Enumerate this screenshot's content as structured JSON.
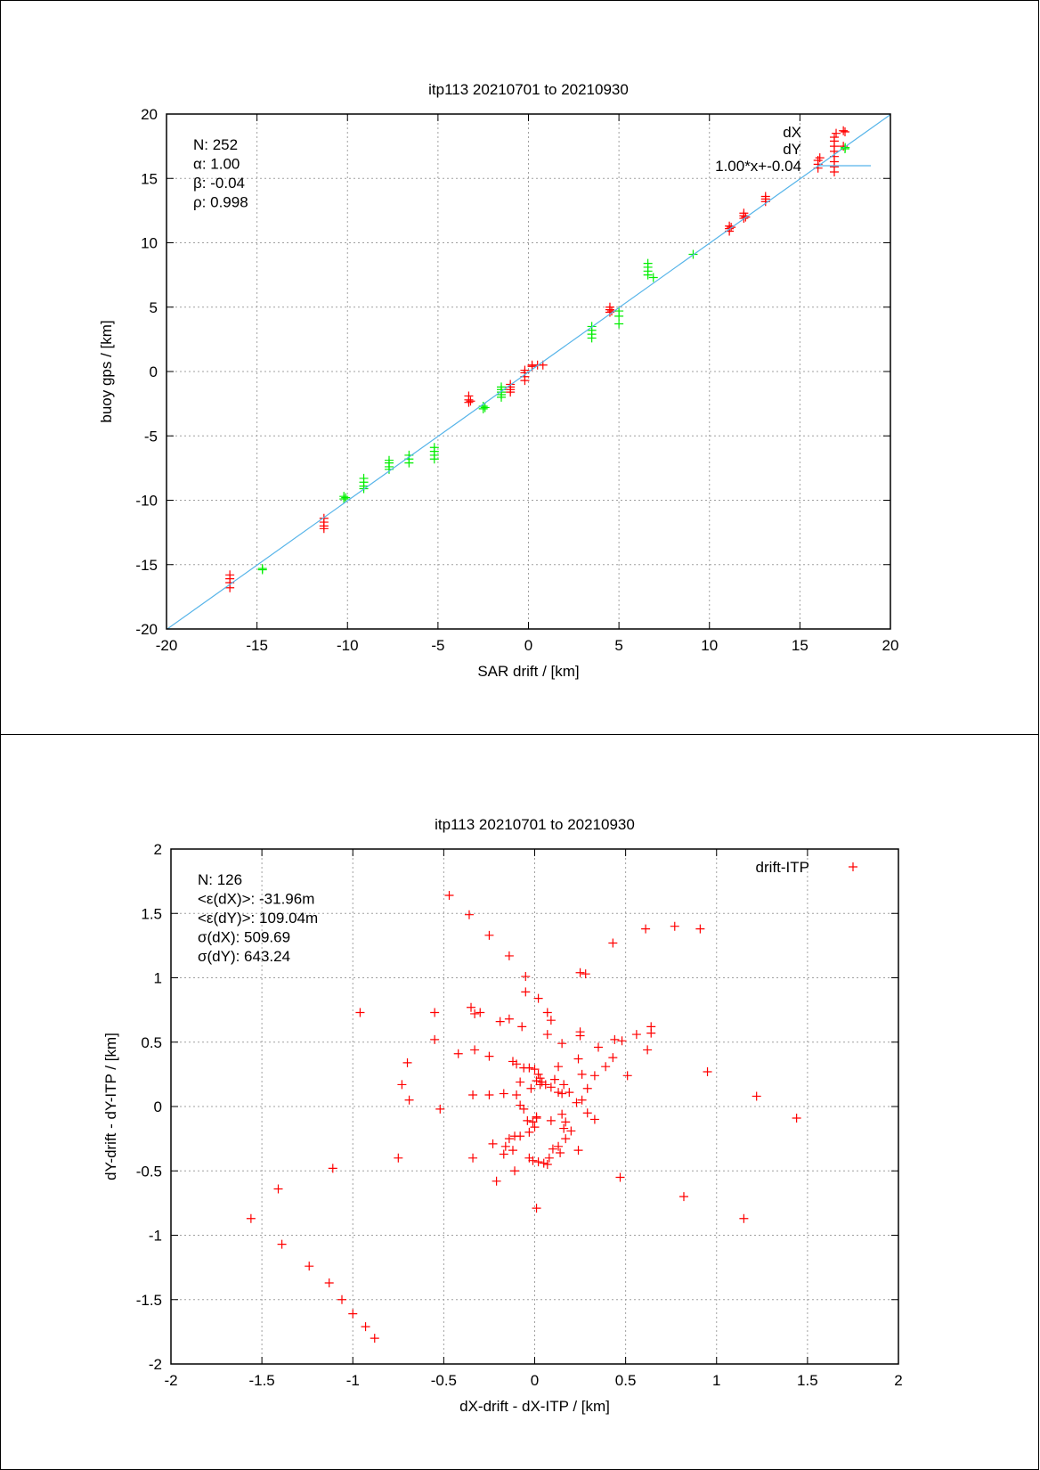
{
  "chart_data": [
    {
      "type": "scatter",
      "title": "itp113 20210701 to 20210930",
      "xlabel": "SAR drift / [km]",
      "ylabel": "buoy gps / [km]",
      "xlim": [
        -20,
        20
      ],
      "ylim": [
        -20,
        20
      ],
      "xticks": [
        "-20",
        "-15",
        "-10",
        "-5",
        "0",
        "5",
        "10",
        "15",
        "20"
      ],
      "yticks": [
        "-20",
        "-15",
        "-10",
        "-5",
        "0",
        "5",
        "10",
        "15",
        "20"
      ],
      "grid": true,
      "legend_position": "top-right",
      "stats": [
        "N: 252",
        "α: 1.00",
        "β: -0.04",
        "ρ: 0.998"
      ],
      "series": [
        {
          "name": "dX",
          "color": "#ff0000",
          "marker": "plus",
          "points": [
            [
              -16.5,
              -15.8
            ],
            [
              -16.5,
              -16.1
            ],
            [
              -16.5,
              -16.4
            ],
            [
              -16.5,
              -16.8
            ],
            [
              -11.3,
              -11.4
            ],
            [
              -11.3,
              -11.7
            ],
            [
              -11.3,
              -12.0
            ],
            [
              -11.3,
              -12.2
            ],
            [
              -3.3,
              -1.9
            ],
            [
              -3.3,
              -2.2
            ],
            [
              -3.3,
              -2.4
            ],
            [
              -3.2,
              -2.3
            ],
            [
              -1.0,
              -1.0
            ],
            [
              -1.0,
              -1.2
            ],
            [
              -1.0,
              -1.4
            ],
            [
              -1.0,
              -1.6
            ],
            [
              -0.2,
              -0.1
            ],
            [
              -0.2,
              -0.4
            ],
            [
              -0.2,
              -0.7
            ],
            [
              -0.2,
              0.1
            ],
            [
              0.2,
              0.4
            ],
            [
              0.2,
              0.5
            ],
            [
              0.5,
              0.5
            ],
            [
              0.8,
              0.5
            ],
            [
              4.5,
              4.6
            ],
            [
              4.5,
              4.8
            ],
            [
              4.5,
              5.0
            ],
            [
              4.6,
              4.7
            ],
            [
              11.1,
              10.9
            ],
            [
              11.1,
              11.1
            ],
            [
              11.1,
              11.3
            ],
            [
              11.2,
              11.2
            ],
            [
              11.9,
              11.9
            ],
            [
              11.9,
              12.1
            ],
            [
              11.9,
              12.3
            ],
            [
              12.0,
              12.0
            ],
            [
              13.1,
              13.2
            ],
            [
              13.1,
              13.4
            ],
            [
              13.1,
              13.6
            ],
            [
              16.0,
              15.8
            ],
            [
              16.0,
              16.1
            ],
            [
              16.0,
              16.4
            ],
            [
              16.1,
              16.6
            ],
            [
              16.9,
              15.5
            ],
            [
              16.9,
              15.9
            ],
            [
              16.9,
              16.3
            ],
            [
              16.9,
              16.7
            ],
            [
              16.9,
              17.1
            ],
            [
              16.9,
              17.5
            ],
            [
              16.9,
              17.9
            ],
            [
              16.9,
              18.2
            ],
            [
              17.0,
              18.5
            ],
            [
              17.4,
              18.7
            ],
            [
              17.4,
              17.5
            ]
          ]
        },
        {
          "name": "dY",
          "color": "#00ee00",
          "marker": "plus",
          "points": [
            [
              -14.7,
              -15.3
            ],
            [
              -14.7,
              -15.4
            ],
            [
              -10.2,
              -9.7
            ],
            [
              -10.2,
              -9.9
            ],
            [
              -10.1,
              -9.8
            ],
            [
              -9.1,
              -8.3
            ],
            [
              -9.1,
              -8.6
            ],
            [
              -9.1,
              -8.9
            ],
            [
              -9.1,
              -9.1
            ],
            [
              -7.7,
              -6.9
            ],
            [
              -7.7,
              -7.1
            ],
            [
              -7.7,
              -7.4
            ],
            [
              -7.7,
              -7.6
            ],
            [
              -6.6,
              -6.5
            ],
            [
              -6.6,
              -6.8
            ],
            [
              -6.6,
              -7.1
            ],
            [
              -5.2,
              -5.9
            ],
            [
              -5.2,
              -6.2
            ],
            [
              -5.2,
              -6.5
            ],
            [
              -5.2,
              -6.8
            ],
            [
              -2.5,
              -2.7
            ],
            [
              -2.5,
              -2.9
            ],
            [
              -2.4,
              -2.8
            ],
            [
              -1.5,
              -1.2
            ],
            [
              -1.5,
              -1.4
            ],
            [
              -1.5,
              -1.6
            ],
            [
              -1.5,
              -1.8
            ],
            [
              -1.5,
              -2.0
            ],
            [
              3.5,
              3.5
            ],
            [
              3.5,
              3.2
            ],
            [
              3.5,
              2.9
            ],
            [
              3.5,
              2.6
            ],
            [
              5.0,
              4.7
            ],
            [
              5.0,
              4.3
            ],
            [
              5.0,
              3.7
            ],
            [
              6.6,
              8.4
            ],
            [
              6.6,
              8.1
            ],
            [
              6.6,
              7.8
            ],
            [
              6.6,
              7.5
            ],
            [
              6.9,
              7.3
            ],
            [
              9.1,
              9.1
            ],
            [
              17.5,
              17.4
            ]
          ]
        },
        {
          "name": "1.00*x+-0.04",
          "color": "#56b4e9",
          "type": "line",
          "slope": 1.0,
          "intercept": -0.04
        }
      ]
    },
    {
      "type": "scatter",
      "title": "itp113 20210701 to 20210930",
      "xlabel": "dX-drift - dX-ITP / [km]",
      "ylabel": "dY-drift - dY-ITP / [km]",
      "xlim": [
        -2,
        2
      ],
      "ylim": [
        -2,
        2
      ],
      "xticks": [
        "-2",
        "-1.5",
        "-1",
        "-0.5",
        "0",
        "0.5",
        "1",
        "1.5",
        "2"
      ],
      "yticks": [
        "-2",
        "-1.5",
        "-1",
        "-0.5",
        "0",
        "0.5",
        "1",
        "1.5",
        "2"
      ],
      "grid": true,
      "legend_position": "top-right",
      "stats": [
        "N: 126",
        "<ε(dX)>:  -31.96m",
        "<ε(dY)>: 109.04m",
        "σ(dX):  509.69",
        "σ(dY):  643.24"
      ],
      "series": [
        {
          "name": "drift-ITP",
          "color": "#ff0000",
          "marker": "plus",
          "points": [
            [
              -0.47,
              1.64
            ],
            [
              -0.36,
              1.49
            ],
            [
              -0.25,
              1.33
            ],
            [
              -0.14,
              1.17
            ],
            [
              -0.05,
              1.01
            ],
            [
              0.02,
              0.84
            ],
            [
              0.25,
              1.04
            ],
            [
              0.28,
              1.03
            ],
            [
              0.43,
              1.27
            ],
            [
              0.61,
              1.38
            ],
            [
              0.77,
              1.4
            ],
            [
              0.91,
              1.38
            ],
            [
              -0.96,
              0.73
            ],
            [
              -0.55,
              0.73
            ],
            [
              -0.35,
              0.77
            ],
            [
              -0.33,
              0.72
            ],
            [
              -0.3,
              0.73
            ],
            [
              -0.19,
              0.66
            ],
            [
              -0.14,
              0.68
            ],
            [
              -0.07,
              0.62
            ],
            [
              -0.05,
              0.89
            ],
            [
              0.07,
              0.73
            ],
            [
              0.09,
              0.67
            ],
            [
              0.07,
              0.56
            ],
            [
              0.15,
              0.49
            ],
            [
              0.25,
              0.58
            ],
            [
              0.25,
              0.55
            ],
            [
              0.44,
              0.52
            ],
            [
              0.48,
              0.51
            ],
            [
              0.56,
              0.56
            ],
            [
              0.64,
              0.62
            ],
            [
              0.64,
              0.57
            ],
            [
              0.62,
              0.44
            ],
            [
              -0.55,
              0.52
            ],
            [
              -0.42,
              0.41
            ],
            [
              -0.33,
              0.44
            ],
            [
              -0.25,
              0.39
            ],
            [
              -0.12,
              0.35
            ],
            [
              -0.1,
              0.33
            ],
            [
              -0.03,
              0.3
            ],
            [
              -0.06,
              0.3
            ],
            [
              0.0,
              0.29
            ],
            [
              0.02,
              0.25
            ],
            [
              0.03,
              0.22
            ],
            [
              0.04,
              0.19
            ],
            [
              0.06,
              0.17
            ],
            [
              0.11,
              0.21
            ],
            [
              0.13,
              0.31
            ],
            [
              0.15,
              0.1
            ],
            [
              0.16,
              0.17
            ],
            [
              0.24,
              0.37
            ],
            [
              0.26,
              0.25
            ],
            [
              0.33,
              0.24
            ],
            [
              0.35,
              0.46
            ],
            [
              0.39,
              0.31
            ],
            [
              0.43,
              0.38
            ],
            [
              0.51,
              0.24
            ],
            [
              0.95,
              0.27
            ],
            [
              -0.7,
              0.34
            ],
            [
              -0.73,
              0.17
            ],
            [
              -0.69,
              0.05
            ],
            [
              -0.52,
              -0.02
            ],
            [
              -0.34,
              0.09
            ],
            [
              -0.25,
              0.09
            ],
            [
              -0.17,
              0.1
            ],
            [
              -0.1,
              0.09
            ],
            [
              -0.08,
              0.19
            ],
            [
              -0.02,
              0.14
            ],
            [
              0.01,
              0.2
            ],
            [
              0.03,
              0.17
            ],
            [
              0.09,
              0.15
            ],
            [
              0.13,
              0.11
            ],
            [
              0.19,
              0.11
            ],
            [
              0.23,
              0.03
            ],
            [
              0.26,
              0.05
            ],
            [
              0.29,
              0.14
            ],
            [
              0.29,
              -0.05
            ],
            [
              0.33,
              -0.1
            ],
            [
              0.15,
              -0.06
            ],
            [
              0.09,
              -0.11
            ],
            [
              0.01,
              -0.08
            ],
            [
              -0.01,
              -0.12
            ],
            [
              -0.04,
              -0.11
            ],
            [
              -0.06,
              -0.02
            ],
            [
              -0.08,
              0.01
            ],
            [
              0.01,
              -0.09
            ],
            [
              0.0,
              -0.16
            ],
            [
              -0.03,
              -0.2
            ],
            [
              -0.03,
              -0.4
            ],
            [
              -0.08,
              -0.23
            ],
            [
              -0.11,
              -0.23
            ],
            [
              -0.14,
              -0.25
            ],
            [
              -0.16,
              -0.31
            ],
            [
              -0.23,
              -0.29
            ],
            [
              -0.34,
              -0.4
            ],
            [
              -0.21,
              -0.58
            ],
            [
              -0.17,
              -0.37
            ],
            [
              -0.12,
              -0.34
            ],
            [
              -0.11,
              -0.5
            ],
            [
              -0.01,
              -0.42
            ],
            [
              0.02,
              -0.43
            ],
            [
              0.05,
              -0.44
            ],
            [
              0.07,
              -0.45
            ],
            [
              0.08,
              -0.4
            ],
            [
              0.1,
              -0.33
            ],
            [
              0.13,
              -0.31
            ],
            [
              0.14,
              -0.36
            ],
            [
              0.16,
              -0.17
            ],
            [
              0.17,
              -0.12
            ],
            [
              0.2,
              -0.19
            ],
            [
              0.24,
              -0.34
            ],
            [
              0.17,
              -0.25
            ],
            [
              0.47,
              -0.55
            ],
            [
              0.01,
              -0.79
            ],
            [
              -0.75,
              -0.4
            ],
            [
              -1.11,
              -0.48
            ],
            [
              0.82,
              -0.7
            ],
            [
              1.15,
              -0.87
            ],
            [
              1.22,
              0.08
            ],
            [
              1.44,
              -0.09
            ],
            [
              -1.56,
              -0.87
            ],
            [
              -1.41,
              -0.64
            ],
            [
              -1.39,
              -1.07
            ],
            [
              -1.24,
              -1.24
            ],
            [
              -1.13,
              -1.37
            ],
            [
              -1.06,
              -1.5
            ],
            [
              -1.0,
              -1.61
            ],
            [
              -0.93,
              -1.71
            ],
            [
              -0.88,
              -1.8
            ]
          ]
        }
      ]
    }
  ]
}
